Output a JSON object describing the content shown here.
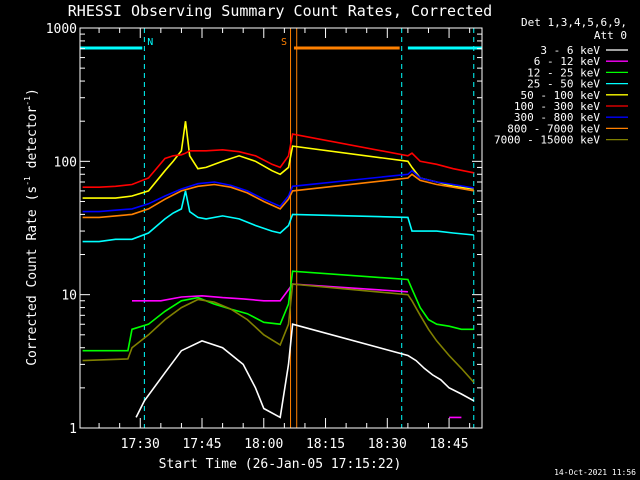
{
  "chart_data": {
    "type": "line",
    "title": "RHESSI Observing Summary Count Rates, Corrected",
    "xlabel": "Start Time (26-Jan-05 17:15:22)",
    "ylabel": "Corrected Count Rate (s^-1 detector^-1)",
    "ylabel_base": "Corrected Count Rate (s",
    "ylabel_sup1": "-1",
    "ylabel_mid": " detector",
    "ylabel_sup2": "-1",
    "ylabel_end": ")",
    "y_scale": "log",
    "xlim": [
      "17:15:22",
      "18:53:00"
    ],
    "ylim": [
      1,
      1000
    ],
    "x_ticks": [
      "17:30",
      "17:45",
      "18:00",
      "18:15",
      "18:30",
      "18:45"
    ],
    "y_ticks": [
      "1",
      "10",
      "100",
      "1000"
    ],
    "timestamp": "14-Oct-2021 11:56",
    "legend_header": [
      "Det 1,3,4,5,6,9,",
      "Att 0"
    ],
    "flags": [
      {
        "label": "N",
        "color": "#00ffff",
        "segments": [
          [
            "17:15:22",
            "17:30:30"
          ],
          [
            "18:35:00",
            "18:53:00"
          ]
        ]
      },
      {
        "label": "S",
        "color": "#ff8000",
        "segments": [
          [
            "18:07:20",
            "18:33:00"
          ]
        ]
      }
    ],
    "vertical_markers": [
      {
        "time": "17:31:00",
        "color": "#00ffff",
        "style": "dashed"
      },
      {
        "time": "18:06:30",
        "color": "#ff8000",
        "style": "solid"
      },
      {
        "time": "18:08:00",
        "color": "#ff8000",
        "style": "solid"
      },
      {
        "time": "18:33:30",
        "color": "#00ffff",
        "style": "dashed"
      },
      {
        "time": "18:51:00",
        "color": "#00ffff",
        "style": "dashed"
      }
    ],
    "data_gap": [
      "18:08:00",
      "18:34:00"
    ],
    "series": [
      {
        "name": "3 - 6 keV",
        "color": "#ffffff",
        "x": [
          "17:16",
          "17:28",
          "17:29",
          "17:31",
          "17:36",
          "17:40",
          "17:45",
          "17:50",
          "17:55",
          "17:58",
          "18:00",
          "18:04",
          "18:06",
          "18:07",
          "18:35",
          "18:37",
          "18:39",
          "18:41",
          "18:43",
          "18:45",
          "18:48",
          "18:51"
        ],
        "y": [
          null,
          null,
          1.2,
          1.6,
          2.6,
          3.8,
          4.5,
          4.0,
          3.0,
          2.0,
          1.4,
          1.2,
          3.0,
          6.0,
          3.5,
          3.2,
          2.8,
          2.5,
          2.3,
          2.0,
          1.8,
          1.6
        ]
      },
      {
        "name": "6 - 12 keV",
        "color": "#ff00ff",
        "x": [
          "17:16",
          "17:27",
          "17:28",
          "17:35",
          "17:40",
          "17:45",
          "17:50",
          "17:55",
          "18:00",
          "18:04",
          "18:07",
          "18:35",
          "18:40",
          "18:45",
          "18:48",
          "18:51"
        ],
        "y": [
          null,
          null,
          9.0,
          9.0,
          9.6,
          9.8,
          9.5,
          9.3,
          9.0,
          9.0,
          12.0,
          10.5,
          null,
          1.2,
          1.2,
          null
        ]
      },
      {
        "name": "12 - 25 keV",
        "color": "#00ff00",
        "x": [
          "17:16",
          "17:27",
          "17:28",
          "17:32",
          "17:36",
          "17:40",
          "17:44",
          "17:48",
          "17:52",
          "17:56",
          "18:00",
          "18:04",
          "18:06",
          "18:07",
          "18:35",
          "18:36",
          "18:38",
          "18:40",
          "18:42",
          "18:45",
          "18:48",
          "18:51"
        ],
        "y": [
          3.8,
          3.8,
          5.5,
          6.0,
          7.5,
          9.0,
          9.5,
          8.5,
          7.8,
          7.2,
          6.2,
          6.0,
          8.5,
          15.0,
          13.0,
          11.0,
          8.0,
          6.5,
          6.0,
          5.8,
          5.5,
          5.5
        ]
      },
      {
        "name": "25 - 50 keV",
        "color": "#00ffff",
        "x": [
          "17:16",
          "17:20",
          "17:24",
          "17:28",
          "17:32",
          "17:36",
          "17:38",
          "17:40",
          "17:41",
          "17:42",
          "17:44",
          "17:46",
          "17:50",
          "17:54",
          "17:58",
          "18:02",
          "18:04",
          "18:06",
          "18:07",
          "18:35",
          "18:36",
          "18:38",
          "18:42",
          "18:46",
          "18:51"
        ],
        "y": [
          25,
          25,
          26,
          26,
          29,
          37,
          41,
          44,
          60,
          42,
          38,
          37,
          39,
          37,
          33,
          30,
          29,
          33,
          40,
          38,
          30,
          30,
          30,
          29,
          28
        ]
      },
      {
        "name": "50 - 100 keV",
        "color": "#ffff00",
        "x": [
          "17:16",
          "17:20",
          "17:24",
          "17:28",
          "17:32",
          "17:36",
          "17:38",
          "17:40",
          "17:41",
          "17:42",
          "17:44",
          "17:46",
          "17:50",
          "17:54",
          "17:58",
          "18:02",
          "18:04",
          "18:06",
          "18:07",
          "18:35",
          "18:36",
          "18:38",
          "18:42",
          "18:46",
          "18:51"
        ],
        "y": [
          53,
          53,
          53,
          55,
          60,
          85,
          100,
          120,
          200,
          110,
          88,
          90,
          100,
          110,
          100,
          85,
          80,
          90,
          130,
          100,
          90,
          75,
          70,
          65,
          62
        ]
      },
      {
        "name": "100 - 300 keV",
        "color": "#ff0000",
        "x": [
          "17:16",
          "17:20",
          "17:24",
          "17:28",
          "17:32",
          "17:36",
          "17:38",
          "17:40",
          "17:41",
          "17:42",
          "17:44",
          "17:46",
          "17:50",
          "17:54",
          "17:58",
          "18:02",
          "18:04",
          "18:06",
          "18:07",
          "18:35",
          "18:36",
          "18:38",
          "18:42",
          "18:46",
          "18:51"
        ],
        "y": [
          64,
          64,
          65,
          67,
          75,
          105,
          110,
          112,
          115,
          120,
          120,
          120,
          122,
          118,
          110,
          95,
          90,
          110,
          160,
          110,
          115,
          100,
          95,
          88,
          82
        ]
      },
      {
        "name": "300 - 800 keV",
        "color": "#0000ff",
        "x": [
          "17:16",
          "17:20",
          "17:24",
          "17:28",
          "17:32",
          "17:36",
          "17:40",
          "17:44",
          "17:48",
          "17:52",
          "17:56",
          "18:00",
          "18:04",
          "18:06",
          "18:07",
          "18:35",
          "18:36",
          "18:38",
          "18:42",
          "18:46",
          "18:51"
        ],
        "y": [
          42,
          42,
          43,
          44,
          48,
          55,
          62,
          68,
          70,
          66,
          60,
          52,
          46,
          55,
          65,
          80,
          85,
          75,
          70,
          67,
          63
        ]
      },
      {
        "name": "800 - 7000 keV",
        "color": "#ff8000",
        "x": [
          "17:16",
          "17:20",
          "17:24",
          "17:28",
          "17:32",
          "17:36",
          "17:40",
          "17:44",
          "17:48",
          "17:52",
          "17:56",
          "18:00",
          "18:04",
          "18:06",
          "18:07",
          "18:35",
          "18:36",
          "18:38",
          "18:42",
          "18:46",
          "18:51"
        ],
        "y": [
          38,
          38,
          39,
          40,
          44,
          52,
          60,
          65,
          67,
          64,
          58,
          50,
          44,
          52,
          60,
          75,
          80,
          72,
          67,
          64,
          60
        ]
      },
      {
        "name": "7000 - 15000 keV",
        "color": "#808000",
        "x": [
          "17:16",
          "17:27",
          "17:28",
          "17:32",
          "17:36",
          "17:40",
          "17:44",
          "17:48",
          "17:52",
          "17:56",
          "18:00",
          "18:04",
          "18:06",
          "18:07",
          "18:35",
          "18:36",
          "18:38",
          "18:40",
          "18:42",
          "18:45",
          "18:48",
          "18:51"
        ],
        "y": [
          3.2,
          3.3,
          4.0,
          5.0,
          6.5,
          8.0,
          9.2,
          8.8,
          7.8,
          6.5,
          5.0,
          4.2,
          6.0,
          12.0,
          10.0,
          9.0,
          7.0,
          5.5,
          4.5,
          3.5,
          2.8,
          2.2
        ]
      }
    ]
  }
}
